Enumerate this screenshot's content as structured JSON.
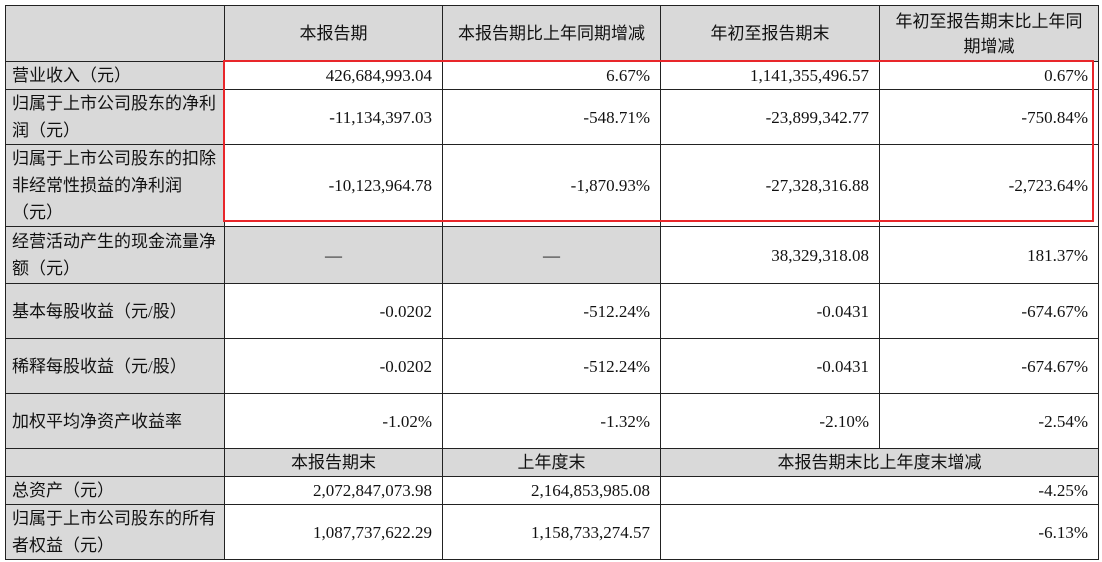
{
  "header": [
    "",
    "本报告期",
    "本报告期比上年同期增减",
    "年初至报告期末",
    "年初至报告期末比上年同期增减"
  ],
  "rows": [
    {
      "label": "营业收入（元）",
      "values": [
        "426,684,993.04",
        "6.67%",
        "1,141,355,496.57",
        "0.67%"
      ]
    },
    {
      "label": "归属于上市公司股东的净利润（元）",
      "values": [
        "-11,134,397.03",
        "-548.71%",
        "-23,899,342.77",
        "-750.84%"
      ]
    },
    {
      "label": "归属于上市公司股东的扣除非经常性损益的净利润（元）",
      "values": [
        "-10,123,964.78",
        "-1,870.93%",
        "-27,328,316.88",
        "-2,723.64%"
      ]
    },
    {
      "label": "经营活动产生的现金流量净额（元）",
      "values": [
        "—",
        "—",
        "38,329,318.08",
        "181.37%"
      ]
    },
    {
      "label": "基本每股收益（元/股）",
      "values": [
        "-0.0202",
        "-512.24%",
        "-0.0431",
        "-674.67%"
      ]
    },
    {
      "label": "稀释每股收益（元/股）",
      "values": [
        "-0.0202",
        "-512.24%",
        "-0.0431",
        "-674.67%"
      ]
    },
    {
      "label": "加权平均净资产收益率",
      "values": [
        "-1.02%",
        "-1.32%",
        "-2.10%",
        "-2.54%"
      ]
    }
  ],
  "header2": [
    "",
    "本报告期末",
    "上年度末",
    "本报告期末比上年度末增减"
  ],
  "rows2": [
    {
      "label": "总资产（元）",
      "values": [
        "2,072,847,073.98",
        "2,164,853,985.08",
        "-4.25%"
      ]
    },
    {
      "label": "归属于上市公司股东的所有者权益（元）",
      "values": [
        "1,087,737,622.29",
        "1,158,733,274.57",
        "-6.13%"
      ]
    }
  ],
  "highlight_color": "#e8262a"
}
